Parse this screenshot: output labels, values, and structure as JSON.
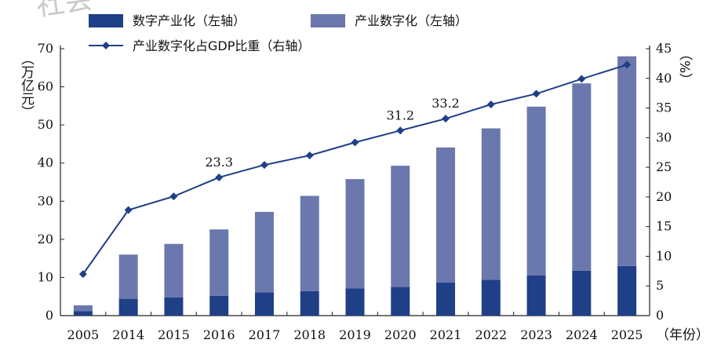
{
  "chart_data": {
    "type": "bar",
    "categories": [
      "2005",
      "2014",
      "2015",
      "2016",
      "2017",
      "2018",
      "2019",
      "2020",
      "2021",
      "2022",
      "2023",
      "2024",
      "2025"
    ],
    "series": [
      {
        "name": "数字产业化（左轴）",
        "kind": "bar",
        "axis": "left",
        "color": "#1f3f87",
        "values": [
          1.2,
          4.4,
          4.8,
          5.2,
          6.1,
          6.4,
          7.1,
          7.5,
          8.7,
          9.4,
          10.5,
          11.8,
          13.0
        ]
      },
      {
        "name": "产业数字化（左轴）",
        "kind": "bar",
        "axis": "left",
        "color": "#6b78ad",
        "values": [
          1.5,
          11.6,
          14.0,
          17.4,
          21.1,
          25.0,
          28.7,
          31.8,
          35.4,
          39.7,
          44.3,
          49.1,
          55.0
        ]
      },
      {
        "name": "产业数字化占GDP比重（右轴）",
        "kind": "line",
        "axis": "right",
        "color": "#1f3f87",
        "values": [
          7.0,
          17.8,
          20.1,
          23.3,
          25.4,
          27.0,
          29.2,
          31.2,
          33.2,
          35.6,
          37.4,
          39.9,
          42.3
        ]
      }
    ],
    "data_labels": [
      {
        "index": 3,
        "text": "23.3"
      },
      {
        "index": 7,
        "text": "31.2"
      },
      {
        "index": 8,
        "text": "33.2"
      }
    ],
    "ylabel_left": "（万亿元）",
    "ylabel_right": "（%）",
    "xlabel": "（年份）",
    "ylim_left": [
      0,
      70
    ],
    "ylim_right": [
      0,
      45
    ],
    "yticks_left": [
      0,
      10,
      20,
      30,
      40,
      50,
      60,
      70
    ],
    "yticks_right": [
      0,
      5,
      10,
      15,
      20,
      25,
      30,
      35,
      40,
      45
    ],
    "legend_position": "top-left",
    "grid": false,
    "watermark_text": "社会"
  }
}
